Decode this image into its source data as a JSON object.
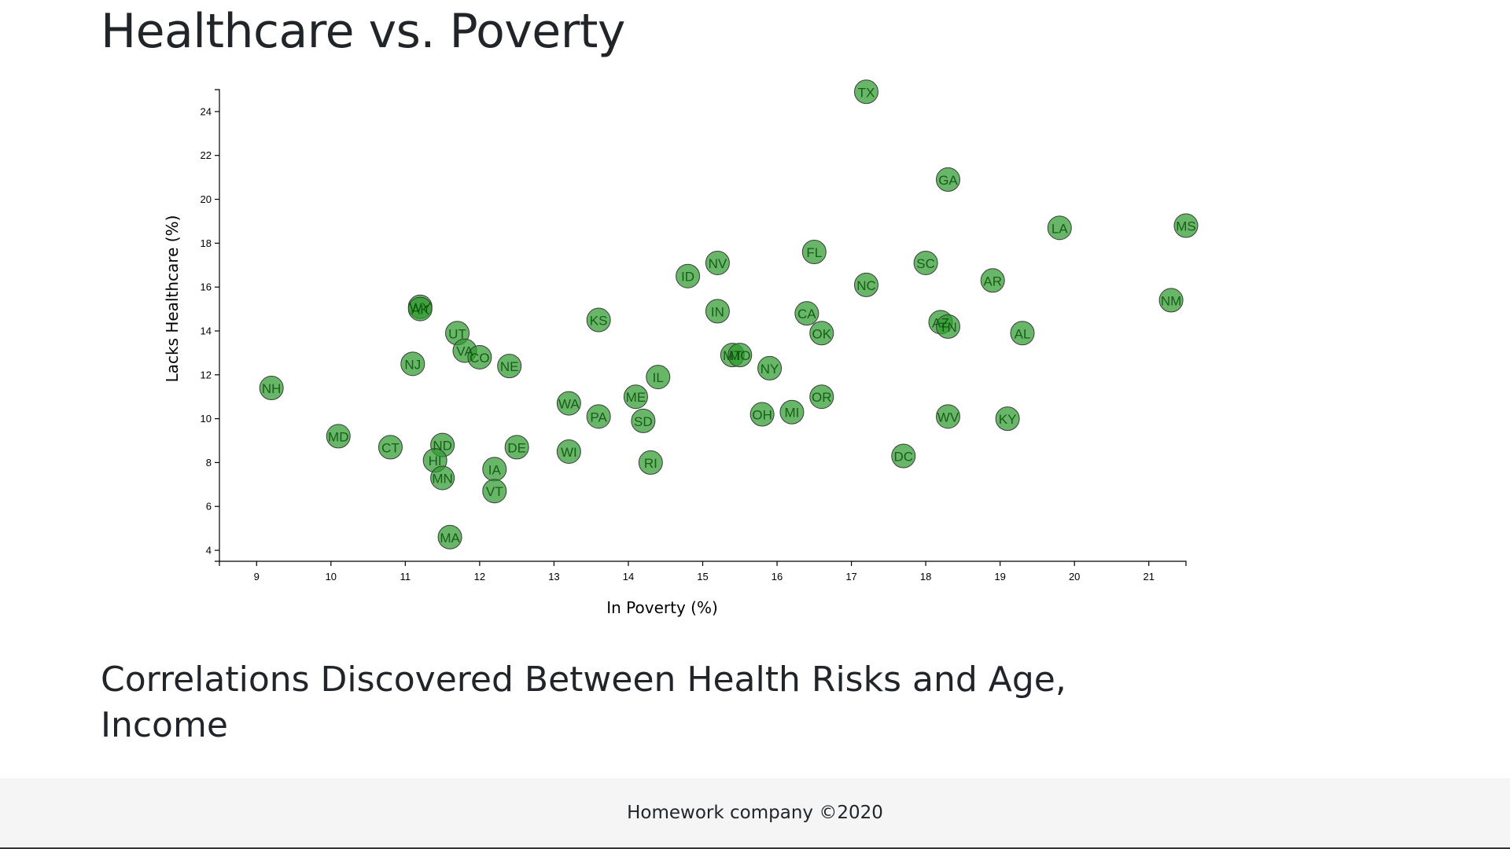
{
  "page": {
    "title": "Healthcare vs. Poverty",
    "subheading": "Correlations Discovered Between Health Risks and Age, Income",
    "footer": "Homework company ©2020"
  },
  "colors": {
    "point_fill": "#2e9a2e",
    "point_stroke": "#3b3b3b",
    "label_text": "#0a4d0a",
    "footer_bg": "#f5f5f5"
  },
  "chart_data": {
    "type": "scatter",
    "title": "Healthcare vs. Poverty",
    "xlabel": "In Poverty (%)",
    "ylabel": "Lacks Healthcare (%)",
    "xlim": [
      8.5,
      21.5
    ],
    "ylim": [
      3.5,
      25
    ],
    "xticks": [
      9,
      10,
      11,
      12,
      13,
      14,
      15,
      16,
      17,
      18,
      19,
      20,
      21
    ],
    "yticks": [
      4,
      6,
      8,
      10,
      12,
      14,
      16,
      18,
      20,
      22,
      24
    ],
    "grid": false,
    "legend": "none",
    "points": [
      {
        "label": "TX",
        "x": 17.2,
        "y": 24.9
      },
      {
        "label": "GA",
        "x": 18.3,
        "y": 20.9
      },
      {
        "label": "LA",
        "x": 19.8,
        "y": 18.7
      },
      {
        "label": "MS",
        "x": 21.5,
        "y": 18.8
      },
      {
        "label": "FL",
        "x": 16.5,
        "y": 17.6
      },
      {
        "label": "SC",
        "x": 18.0,
        "y": 17.1
      },
      {
        "label": "NV",
        "x": 15.2,
        "y": 17.1
      },
      {
        "label": "ID",
        "x": 14.8,
        "y": 16.5
      },
      {
        "label": "AR",
        "x": 18.9,
        "y": 16.3
      },
      {
        "label": "NC",
        "x": 17.2,
        "y": 16.1
      },
      {
        "label": "NM",
        "x": 21.3,
        "y": 15.4
      },
      {
        "label": "WY",
        "x": 11.2,
        "y": 15.1
      },
      {
        "label": "AK",
        "x": 11.2,
        "y": 15.0
      },
      {
        "label": "IN",
        "x": 15.2,
        "y": 14.9
      },
      {
        "label": "CA",
        "x": 16.4,
        "y": 14.8
      },
      {
        "label": "KS",
        "x": 13.6,
        "y": 14.5
      },
      {
        "label": "AZ",
        "x": 18.2,
        "y": 14.4
      },
      {
        "label": "TN",
        "x": 18.3,
        "y": 14.2
      },
      {
        "label": "UT",
        "x": 11.7,
        "y": 13.9
      },
      {
        "label": "OK",
        "x": 16.6,
        "y": 13.9
      },
      {
        "label": "AL",
        "x": 19.3,
        "y": 13.9
      },
      {
        "label": "VA",
        "x": 11.8,
        "y": 13.1
      },
      {
        "label": "CO",
        "x": 12.0,
        "y": 12.8
      },
      {
        "label": "MT",
        "x": 15.4,
        "y": 12.9
      },
      {
        "label": "MO",
        "x": 15.5,
        "y": 12.9
      },
      {
        "label": "NJ",
        "x": 11.1,
        "y": 12.5
      },
      {
        "label": "NE",
        "x": 12.4,
        "y": 12.4
      },
      {
        "label": "NY",
        "x": 15.9,
        "y": 12.3
      },
      {
        "label": "NH",
        "x": 9.2,
        "y": 11.4
      },
      {
        "label": "IL",
        "x": 14.4,
        "y": 11.9
      },
      {
        "label": "ME",
        "x": 14.1,
        "y": 11.0
      },
      {
        "label": "OR",
        "x": 16.6,
        "y": 11.0
      },
      {
        "label": "WA",
        "x": 13.2,
        "y": 10.7
      },
      {
        "label": "PA",
        "x": 13.6,
        "y": 10.1
      },
      {
        "label": "SD",
        "x": 14.2,
        "y": 9.9
      },
      {
        "label": "OH",
        "x": 15.8,
        "y": 10.2
      },
      {
        "label": "MI",
        "x": 16.2,
        "y": 10.3
      },
      {
        "label": "WV",
        "x": 18.3,
        "y": 10.1
      },
      {
        "label": "KY",
        "x": 19.1,
        "y": 10.0
      },
      {
        "label": "MD",
        "x": 10.1,
        "y": 9.2
      },
      {
        "label": "CT",
        "x": 10.8,
        "y": 8.7
      },
      {
        "label": "ND",
        "x": 11.5,
        "y": 8.8
      },
      {
        "label": "DE",
        "x": 12.5,
        "y": 8.7
      },
      {
        "label": "WI",
        "x": 13.2,
        "y": 8.5
      },
      {
        "label": "HI",
        "x": 11.4,
        "y": 8.1
      },
      {
        "label": "RI",
        "x": 14.3,
        "y": 8.0
      },
      {
        "label": "DC",
        "x": 17.7,
        "y": 8.3
      },
      {
        "label": "IA",
        "x": 12.2,
        "y": 7.7
      },
      {
        "label": "MN",
        "x": 11.5,
        "y": 7.3
      },
      {
        "label": "VT",
        "x": 12.2,
        "y": 6.7
      },
      {
        "label": "MA",
        "x": 11.6,
        "y": 4.6
      }
    ]
  }
}
